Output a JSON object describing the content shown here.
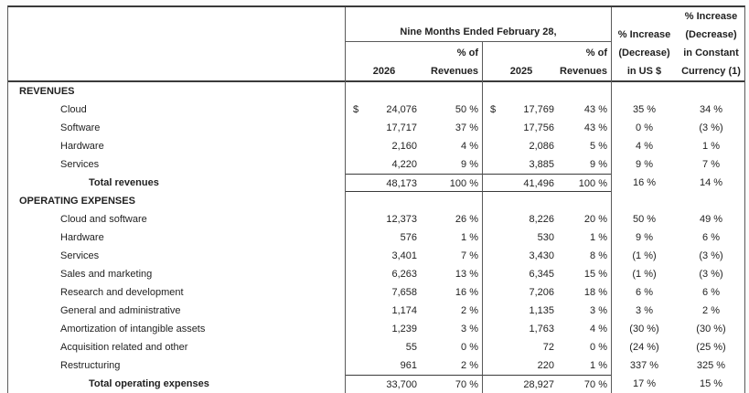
{
  "colors": {
    "background": "#ffffff",
    "text": "#1f1f1f",
    "border": "#5a5a5a",
    "strong_border": "#3a3a3a"
  },
  "table": {
    "header": {
      "group_title": "Nine Months Ended February 28,",
      "year_left": "2026",
      "year_right": "2025",
      "pct_of_lines": [
        "% of",
        "Revenues"
      ],
      "inc_usd_lines": [
        "% Increase",
        "(Decrease)",
        "in US $"
      ],
      "inc_cc_lines": [
        "% Increase",
        "(Decrease)",
        "in Constant",
        "Currency (1)"
      ]
    },
    "rows": [
      {
        "type": "section",
        "label": "REVENUES"
      },
      {
        "type": "item",
        "label": "Cloud",
        "dollar": "$",
        "v26": "24,076",
        "p26": "50 %",
        "v25": "17,769",
        "p25": "43 %",
        "iu": "35 %",
        "ic": "34 %"
      },
      {
        "type": "item",
        "label": "Software",
        "v26": "17,717",
        "p26": "37 %",
        "v25": "17,756",
        "p25": "43 %",
        "iu": "0 %",
        "ic": "(3 %)"
      },
      {
        "type": "item",
        "label": "Hardware",
        "v26": "2,160",
        "p26": "4 %",
        "v25": "2,086",
        "p25": "5 %",
        "iu": "4 %",
        "ic": "1 %"
      },
      {
        "type": "item",
        "label": "Services",
        "v26": "4,220",
        "p26": "9 %",
        "v25": "3,885",
        "p25": "9 %",
        "iu": "9 %",
        "ic": "7 %"
      },
      {
        "type": "total",
        "border": "both",
        "label": "Total revenues",
        "v26": "48,173",
        "p26": "100 %",
        "v25": "41,496",
        "p25": "100 %",
        "iu": "16 %",
        "ic": "14 %"
      },
      {
        "type": "section",
        "label": "OPERATING EXPENSES"
      },
      {
        "type": "item",
        "label": "Cloud and software",
        "v26": "12,373",
        "p26": "26 %",
        "v25": "8,226",
        "p25": "20 %",
        "iu": "50 %",
        "ic": "49 %"
      },
      {
        "type": "item",
        "label": "Hardware",
        "v26": "576",
        "p26": "1 %",
        "v25": "530",
        "p25": "1 %",
        "iu": "9 %",
        "ic": "6 %"
      },
      {
        "type": "item",
        "label": "Services",
        "v26": "3,401",
        "p26": "7 %",
        "v25": "3,430",
        "p25": "8 %",
        "iu": "(1 %)",
        "ic": "(3 %)"
      },
      {
        "type": "item",
        "label": "Sales and marketing",
        "v26": "6,263",
        "p26": "13 %",
        "v25": "6,345",
        "p25": "15 %",
        "iu": "(1 %)",
        "ic": "(3 %)"
      },
      {
        "type": "item",
        "label": "Research and development",
        "v26": "7,658",
        "p26": "16 %",
        "v25": "7,206",
        "p25": "18 %",
        "iu": "6 %",
        "ic": "6 %"
      },
      {
        "type": "item",
        "label": "General and administrative",
        "v26": "1,174",
        "p26": "2 %",
        "v25": "1,135",
        "p25": "3 %",
        "iu": "3 %",
        "ic": "2 %"
      },
      {
        "type": "item",
        "label": "Amortization of intangible assets",
        "v26": "1,239",
        "p26": "3 %",
        "v25": "1,763",
        "p25": "4 %",
        "iu": "(30 %)",
        "ic": "(30 %)"
      },
      {
        "type": "item",
        "label": "Acquisition related and other",
        "v26": "55",
        "p26": "0 %",
        "v25": "72",
        "p25": "0 %",
        "iu": "(24 %)",
        "ic": "(25 %)"
      },
      {
        "type": "item",
        "label": "Restructuring",
        "v26": "961",
        "p26": "2 %",
        "v25": "220",
        "p25": "1 %",
        "iu": "337 %",
        "ic": "325 %"
      },
      {
        "type": "total",
        "border": "top",
        "label": "Total operating expenses",
        "v26": "33,700",
        "p26": "70 %",
        "v25": "28,927",
        "p25": "70 %",
        "iu": "17 %",
        "ic": "15 %"
      }
    ]
  }
}
